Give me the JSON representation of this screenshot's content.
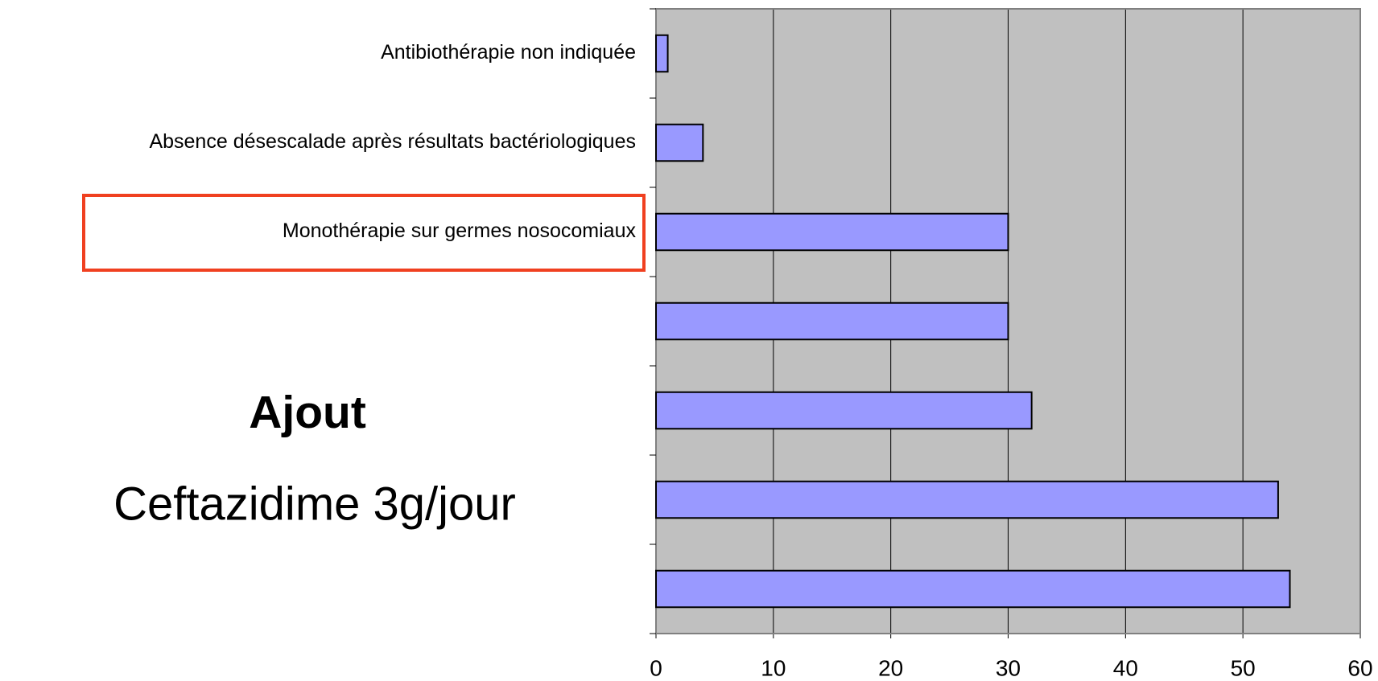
{
  "chart_data": {
    "type": "barh",
    "categories": [
      "Antibiothérapie non indiquée",
      "Absence désescalade après résultats bactériologiques",
      "Monothérapie sur germes nosocomiaux",
      null,
      null,
      null,
      null
    ],
    "values": [
      1,
      4,
      30,
      30,
      32,
      53,
      54
    ],
    "color": "#9999ff",
    "xlim": [
      0,
      60
    ],
    "xticks": [
      0,
      10,
      20,
      30,
      40,
      50,
      60
    ],
    "grid": true,
    "annotations": [
      "Ajout",
      "Ceftazidime 3g/jour"
    ]
  }
}
